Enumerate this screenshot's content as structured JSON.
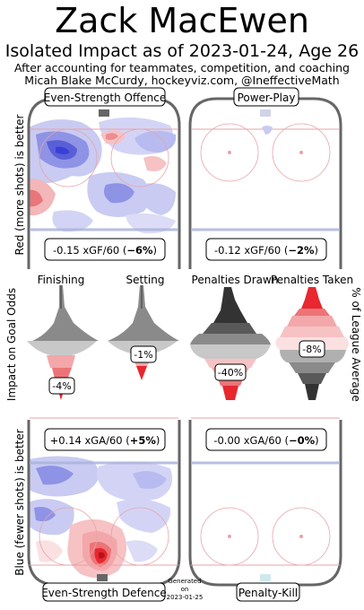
{
  "header": {
    "title": "Zack MacEwen",
    "subtitle": "Isolated Impact as of 2023-01-24, Age 26",
    "line2": "After accounting for teammates, competition, and coaching",
    "line3": "Micah Blake McCurdy, hockeyviz.com, @IneffectiveMath"
  },
  "colors": {
    "red": "#e8272e",
    "blue": "#3b3fd6",
    "grey": "#595959",
    "rink_line_red": "#e7a3a8",
    "rink_line_blue": "#aab4dc",
    "boards": "#666666"
  },
  "rinks": {
    "es_offence": {
      "label": "Even-Strength Offence",
      "stat": "-0.15 xGF/60 (",
      "pct": "−6%",
      "close": ")"
    },
    "pp": {
      "label": "Power-Play",
      "stat": "-0.12 xGF/60 (",
      "pct": "−2%",
      "close": ")"
    },
    "es_defence": {
      "label": "Even-Strength Defence",
      "stat": "+0.14 xGA/60 (",
      "pct": "+5%",
      "close": ")"
    },
    "pk": {
      "label": "Penalty-Kill",
      "stat": "-0.00 xGA/60 (",
      "pct": "−0%",
      "close": ")"
    }
  },
  "side_labels": {
    "top_left": "Red (more shots) is better",
    "mid_left": "Impact on Goal Odds",
    "bottom_left": "Blue (fewer shots) is better",
    "mid_right": "% of League Average"
  },
  "generated": {
    "line1": "Generated",
    "line2": "on",
    "line3": "2023-01-25"
  },
  "chart_data": [
    {
      "type": "violin",
      "title": "Impact on Goal Odds",
      "unit": "% of League Average",
      "series": [
        {
          "name": "Finishing",
          "value_label": "-4%",
          "value": -4
        },
        {
          "name": "Setting",
          "value_label": "-1%",
          "value": -1
        },
        {
          "name": "Penalties Drawn",
          "value_label": "-40%",
          "value": -40
        },
        {
          "name": "Penalties Taken",
          "value_label": "-8%",
          "value": -8
        }
      ]
    },
    {
      "type": "heatmap",
      "title": "Even-Strength Offence",
      "xGF60": -0.15,
      "pct": -6
    },
    {
      "type": "heatmap",
      "title": "Power-Play",
      "xGF60": -0.12,
      "pct": -2
    },
    {
      "type": "heatmap",
      "title": "Even-Strength Defence",
      "xGA60": 0.14,
      "pct": 5
    },
    {
      "type": "heatmap",
      "title": "Penalty-Kill",
      "xGA60": -0.0,
      "pct": 0
    }
  ]
}
